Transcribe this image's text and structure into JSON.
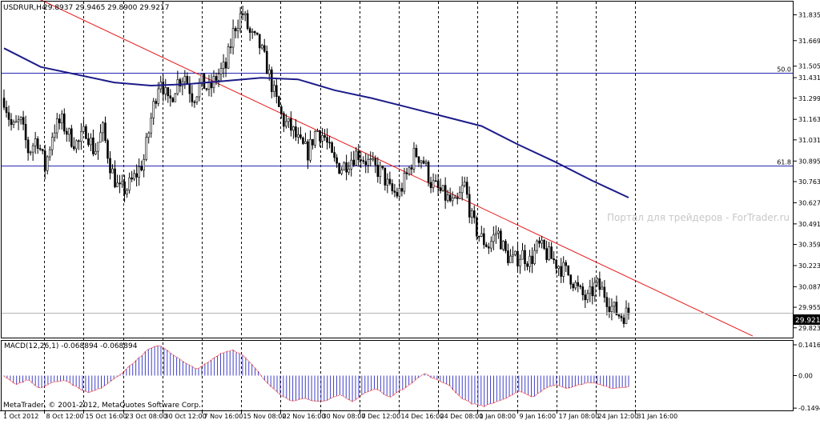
{
  "chart_header": {
    "symbol": "USDRUR,H4",
    "ohlc": "29.8937 29.9465 29.8900 29.9217"
  },
  "watermark": "Портал для трейдеров - ForTrader.ru",
  "copyright": "MetaTrader, © 2001-2012, MetaQuotes Software Corp.",
  "colors": {
    "candles": "#000000",
    "moving_average": "#1c1c8a",
    "trendline": "#e81919",
    "fib_levels": "#2727b0",
    "macd_histogram": "#4040c8",
    "macd_signal": "#e81919",
    "bid_line": "#b4b4b4",
    "background": "#ffffff"
  },
  "chart_data": [
    {
      "type": "candlestick",
      "panel": "main",
      "ylim": [
        29.76,
        31.92
      ],
      "y_ticks": [
        "31.8350",
        "31.6690",
        "31.5050",
        "31.4310",
        "31.2990",
        "31.1630",
        "31.0310",
        "30.8950",
        "30.7630",
        "30.6270",
        "30.4910",
        "30.3590",
        "30.2230",
        "30.0870",
        "29.9550",
        "29.8230"
      ],
      "x_ticks": [
        "1 Oct 2012",
        "8 Oct 12:00",
        "15 Oct 16:00",
        "23 Oct 08:00",
        "30 Oct 12:00",
        "7 Nov 16:00",
        "15 Nov 08:00",
        "22 Nov 16:00",
        "30 Nov 08:00",
        "7 Dec 12:00",
        "14 Dec 16:00",
        "24 Dec 08:00",
        "1 Jan 08:00",
        "9 Jan 16:00",
        "17 Jan 08:00",
        "24 Jan 12:00",
        "31 Jan 16:00"
      ],
      "close_path": [
        31.3,
        31.1,
        31.15,
        30.95,
        31.05,
        30.85,
        31.1,
        31.15,
        31.05,
        31.0,
        31.1,
        30.95,
        31.1,
        30.85,
        30.7,
        30.72,
        30.8,
        30.9,
        31.2,
        31.45,
        31.25,
        31.4,
        31.45,
        31.3,
        31.4,
        31.35,
        31.45,
        31.5,
        31.75,
        31.85,
        31.7,
        31.65,
        31.5,
        31.3,
        31.15,
        31.1,
        31.0,
        30.95,
        31.1,
        31.05,
        30.9,
        30.85,
        30.9,
        30.95,
        30.9,
        30.85,
        30.82,
        30.7,
        30.68,
        30.8,
        30.95,
        30.9,
        30.75,
        30.7,
        30.65,
        30.6,
        30.75,
        30.5,
        30.4,
        30.35,
        30.45,
        30.3,
        30.25,
        30.3,
        30.25,
        30.35,
        30.3,
        30.25,
        30.2,
        30.15,
        30.05,
        30.0,
        30.1,
        30.05,
        29.95,
        29.9,
        29.92
      ],
      "moving_average": [
        31.62,
        31.5,
        31.45,
        31.4,
        31.38,
        31.39,
        31.41,
        31.43,
        31.42,
        31.35,
        31.3,
        31.24,
        31.18,
        31.12,
        31.0,
        30.89,
        30.77,
        30.66
      ],
      "trendline": {
        "from": [
          "1 Oct 2012",
          32.05
        ],
        "to": [
          "31 Jan 16:00",
          29.77
        ]
      },
      "horizontal_levels": [
        {
          "label": "50.0",
          "value": 31.46
        },
        {
          "label": "61.8",
          "value": 30.865
        }
      ],
      "current_price": 29.9217,
      "current_price_label": "29.9217"
    },
    {
      "type": "histogram",
      "panel": "indicator",
      "title": "MACD(12,26,1) -0.068894 -0.068894",
      "ylim": [
        -0.16,
        0.16
      ],
      "y_ticks": [
        "0.14166",
        "0.00",
        "-0.14945"
      ],
      "values": [
        0.0,
        -0.04,
        -0.02,
        -0.06,
        -0.03,
        -0.02,
        -0.05,
        -0.08,
        -0.06,
        -0.02,
        0.02,
        0.07,
        0.12,
        0.14,
        0.1,
        0.06,
        0.03,
        0.06,
        0.1,
        0.12,
        0.09,
        0.03,
        -0.04,
        -0.09,
        -0.12,
        -0.1,
        -0.12,
        -0.11,
        -0.09,
        -0.12,
        -0.08,
        -0.06,
        -0.1,
        -0.07,
        -0.03,
        0.01,
        -0.02,
        -0.04,
        -0.1,
        -0.13,
        -0.14,
        -0.12,
        -0.1,
        -0.07,
        -0.1,
        -0.06,
        -0.04,
        -0.06,
        -0.04,
        -0.03,
        -0.05,
        -0.06,
        -0.05
      ]
    }
  ]
}
